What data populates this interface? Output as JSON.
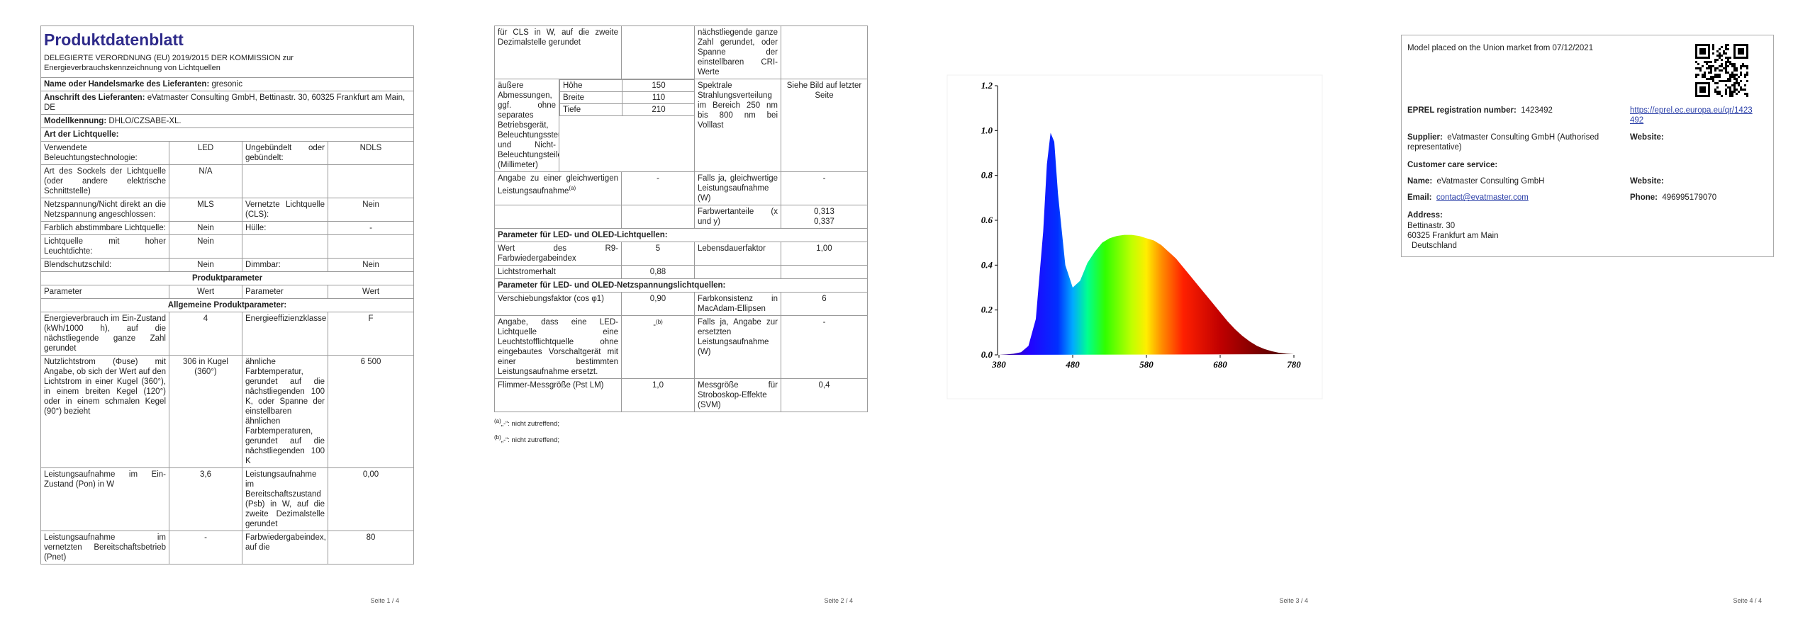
{
  "pages": [
    {
      "title": "Produktdatenblatt",
      "regulation": "DELEGIERTE VERORDNUNG (EU) 2019/2015 DER KOMMISSION zur Energieverbrauchskennzeichnung von Lichtquellen",
      "fields": [
        {
          "label": "Name oder Handelsmarke des Lieferanten:",
          "value": "gresonic"
        },
        {
          "label": "Anschrift des Lieferanten:",
          "value": "eVatmaster Consulting GmbH, Bettinastr. 30, 60325 Frankfurt am Main, DE"
        },
        {
          "label": "Modellkennung:",
          "value": "DHLO/CZSABE-XL."
        }
      ],
      "heading": "Art der Lichtquelle:",
      "rows": [
        [
          "Verwendete Beleuchtungstechnologie:",
          "LED",
          "Ungebündelt oder gebündelt:",
          "NDLS"
        ],
        [
          "Art des Sockels der Lichtquelle (oder andere elektrische Schnittstelle)",
          "N/A",
          null,
          null
        ],
        [
          "Netzspannung/Nicht direkt an die Netzspannung angeschlossen:",
          "MLS",
          "Vernetzte Lichtquelle (CLS):",
          "Nein"
        ],
        [
          "Farblich abstimmbare Lichtquelle:",
          "Nein",
          "Hülle:",
          "-"
        ],
        [
          "Lichtquelle mit hoher Leuchtdichte:",
          "Nein",
          null,
          null
        ],
        [
          "Blendschutzschild:",
          "Nein",
          "Dimmbar:",
          "Nein"
        ],
        {
          "section": "Produktparameter"
        },
        [
          "Parameter",
          "Wert",
          "Parameter",
          "Wert"
        ],
        {
          "section": "Allgemeine Produktparameter:"
        },
        [
          "Energieverbrauch im Ein-Zustand (kWh/1000 h), auf die nächstliegende ganze Zahl gerundet",
          "4",
          "Energieeffizienzklasse",
          "F"
        ],
        [
          "Nutzlichtstrom (Φuse) mit Angabe, ob sich der Wert auf den Lichtstrom in einer Kugel (360°), in einem breiten Kegel (120°) oder in einem schmalen Kegel (90°) bezieht",
          "306 in Kugel (360°)",
          "ähnliche Farbtemperatur, gerundet auf die nächstliegenden 100 K, oder Spanne der einstellbaren ähnlichen Farbtemperaturen, gerundet auf die nächstliegenden 100 K",
          "6 500"
        ],
        [
          "Leistungsaufnahme im Ein-Zustand (Pon) in W",
          "3,6",
          "Leistungsaufnahme im Bereitschaftszustand (Psb) in W, auf die zweite Dezimalstelle gerundet",
          "0,00"
        ],
        [
          "Leistungsaufnahme im vernetzten Bereitschaftsbetrieb (Pnet)",
          "-",
          "Farbwiedergabeindex, auf die",
          "80"
        ]
      ],
      "footer": "Seite 1 / 4"
    },
    {
      "rows": [
        [
          "für CLS in W, auf die zweite Dezimalstelle gerundet",
          null,
          "nächstliegende ganze Zahl gerundet, oder Spanne der einstellbaren CRI-Werte",
          null
        ],
        [
          "äußere Abmessungen, ggf. ohne separates Betriebsgerät, Beleuchtungssteuerungsteile und Nicht-Beleuchtungsteile (Millimeter)",
          {
            "dims": [
              {
                "name": "Höhe",
                "value": "150"
              },
              {
                "name": "Breite",
                "value": "110"
              },
              {
                "name": "Tiefe",
                "value": "210"
              }
            ]
          },
          "Spektrale Strahlungsverteilung im Bereich 250 nm bis 800 nm bei Volllast",
          "Siehe Bild auf letzter Seite"
        ],
        [
          {
            "text": "Angabe zu einer gleichwertigen Leistungsaufnahme",
            "sup": "(a)"
          },
          "-",
          "Falls ja, gleichwertige Leistungsaufnahme (W)",
          "-"
        ],
        [
          null,
          null,
          "Farbwertanteile (x und y)",
          {
            "lines": [
              "0,313",
              "0,337"
            ]
          }
        ],
        {
          "section": "Parameter für LED- und OLED-Lichtquellen:"
        },
        [
          "Wert des R9-Farbwiedergabeindex",
          "5",
          "Lebensdauerfaktor",
          "1,00"
        ],
        [
          "Lichtstromerhalt",
          "0,88",
          null,
          null
        ],
        {
          "section": "Parameter für LED- und OLED-Netzspannungslichtquellen:"
        },
        [
          "Verschiebungsfaktor (cos φ1)",
          "0,90",
          "Farbkonsistenz in MacAdam-Ellipsen",
          "6"
        ],
        [
          "Angabe, dass eine LED-Lichtquelle eine Leuchtstofflichtquelle ohne eingebautes Vorschaltgerät mit einer bestimmten Leistungsaufnahme ersetzt.",
          {
            "text": "-",
            "sup": "(b)"
          },
          "Falls ja, Angabe zur ersetzten Leistungsaufnahme (W)",
          "-"
        ],
        [
          "Flimmer-Messgröße (Pst LM)",
          "1,0",
          "Messgröße für Stroboskop-Effekte (SVM)",
          "0,4"
        ]
      ],
      "footnotes": [
        {
          "mark": "(a)",
          "text": "„-“: nicht zutreffend;"
        },
        {
          "mark": "(b)",
          "text": "„-“: nicht zutreffend;"
        }
      ],
      "footer": "Seite 2 / 4"
    },
    {
      "footer": "Seite 3 / 4"
    },
    {
      "market": "Model placed on the Union market from 07/12/2021",
      "eprel_label": "EPREL registration number:",
      "eprel": "1423492",
      "eprel_link": "https://eprel.ec.europa.eu/qr/1423492",
      "supplier_label": "Supplier:",
      "supplier": "eVatmaster Consulting GmbH (Authorised representative)",
      "website_label": "Website:",
      "care": "Customer care service:",
      "name_label": "Name:",
      "name": "eVatmaster Consulting GmbH",
      "care_website_label": "Website:",
      "email_label": "Email:",
      "email": "contact@evatmaster.com",
      "phone_label": "Phone:",
      "phone": "496995179070",
      "address_label": "Address:",
      "address": [
        "Bettinastr. 30",
        "60325 Frankfurt am Main",
        "Deutschland"
      ],
      "footer": "Seite 4 / 4"
    }
  ],
  "chart_data": {
    "type": "area",
    "x": [
      380,
      390,
      400,
      410,
      420,
      430,
      440,
      445,
      450,
      455,
      460,
      470,
      480,
      490,
      500,
      510,
      520,
      530,
      540,
      550,
      560,
      570,
      580,
      590,
      600,
      610,
      620,
      630,
      640,
      650,
      660,
      670,
      680,
      690,
      700,
      710,
      720,
      730,
      740,
      750,
      760,
      770,
      780
    ],
    "values": [
      0,
      0.002,
      0.005,
      0.012,
      0.04,
      0.16,
      0.55,
      0.85,
      0.99,
      0.95,
      0.72,
      0.4,
      0.3,
      0.33,
      0.41,
      0.46,
      0.5,
      0.52,
      0.53,
      0.535,
      0.535,
      0.53,
      0.52,
      0.51,
      0.49,
      0.46,
      0.43,
      0.39,
      0.35,
      0.31,
      0.27,
      0.23,
      0.19,
      0.15,
      0.115,
      0.085,
      0.06,
      0.04,
      0.026,
      0.016,
      0.009,
      0.005,
      0.003
    ],
    "xlim": [
      380,
      780
    ],
    "ylim": [
      0,
      1.2
    ],
    "xticks": [
      380,
      480,
      580,
      680,
      780
    ],
    "yticks": [
      {
        "value": 0,
        "label": "0.0"
      },
      {
        "value": 0.2,
        "label": "0.2"
      },
      {
        "value": 0.4,
        "label": "0.4"
      },
      {
        "value": 0.6,
        "label": "0.6"
      },
      {
        "value": 0.8,
        "label": "0.8"
      },
      {
        "value": 1,
        "label": "1.0"
      },
      {
        "value": 1.2,
        "label": "1.2"
      }
    ]
  }
}
